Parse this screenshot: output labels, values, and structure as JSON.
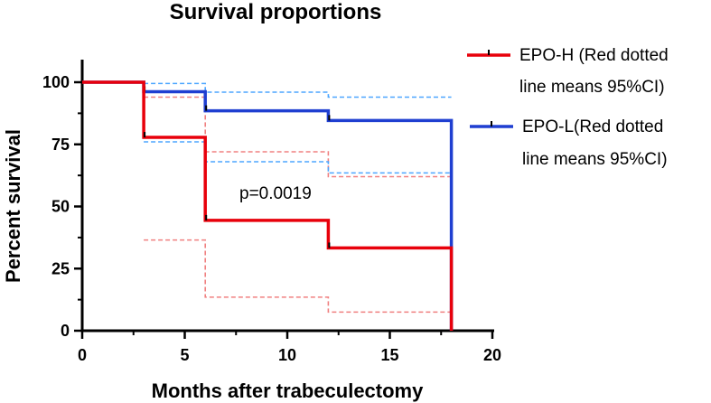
{
  "chart_data": {
    "type": "line",
    "title": "Survival proportions",
    "xlabel": "Months after trabeculectomy",
    "ylabel": "Percent survival",
    "xlim": [
      0,
      20
    ],
    "ylim": [
      0,
      100
    ],
    "x_ticks": [
      0,
      5,
      10,
      15,
      20
    ],
    "y_ticks": [
      0,
      25,
      50,
      75,
      100
    ],
    "annotation": "p=0.0019",
    "legend_position": "right",
    "series": [
      {
        "name": "EPO-H (Red dotted line means 95%CI)",
        "legend_lines": [
          "EPO-H (Red dotted",
          "line means 95%CI)"
        ],
        "color": "#e8000b",
        "steps": [
          [
            0,
            100
          ],
          [
            3,
            77.8
          ],
          [
            6,
            44.4
          ],
          [
            12,
            33.3
          ],
          [
            18,
            0
          ]
        ],
        "censor_marks": [
          [
            3,
            77.8
          ],
          [
            6,
            44.4
          ],
          [
            12,
            33.3
          ]
        ],
        "ci_upper": [
          [
            3,
            94
          ],
          [
            6,
            72
          ],
          [
            12,
            62
          ],
          [
            18,
            62
          ]
        ],
        "ci_lower": [
          [
            3,
            36.5
          ],
          [
            6,
            13.5
          ],
          [
            12,
            7.5
          ],
          [
            18,
            7.5
          ]
        ]
      },
      {
        "name": "EPO-L(Red dotted line means 95%CI)",
        "legend_lines": [
          "EPO-L(Red dotted",
          "line means 95%CI)"
        ],
        "color": "#1f3fd1",
        "steps": [
          [
            0,
            100
          ],
          [
            3,
            96.2
          ],
          [
            6,
            88.5
          ],
          [
            12,
            84.6
          ],
          [
            18,
            0
          ]
        ],
        "censor_marks": [
          [
            3,
            96.2
          ],
          [
            6,
            88.5
          ],
          [
            12,
            84.6
          ]
        ],
        "ci_upper": [
          [
            3,
            99.5
          ],
          [
            6,
            96
          ],
          [
            12,
            94
          ],
          [
            18,
            94
          ]
        ],
        "ci_lower": [
          [
            3,
            76
          ],
          [
            6,
            68
          ],
          [
            12,
            63.5
          ],
          [
            18,
            63.5
          ]
        ]
      }
    ],
    "ci_colors": {
      "EPO-H": "#f08080",
      "EPO-L": "#4da6ff"
    }
  }
}
